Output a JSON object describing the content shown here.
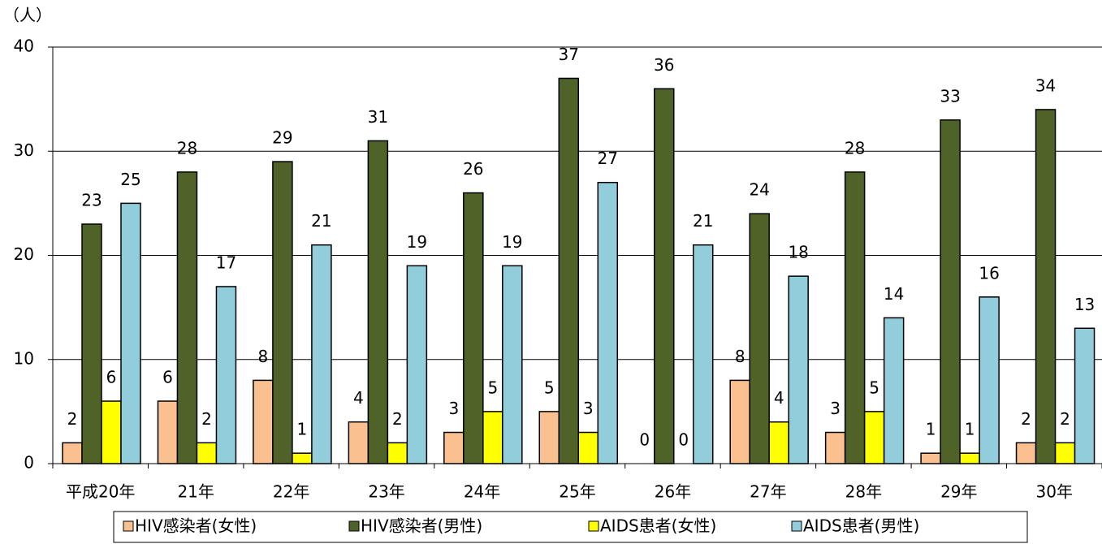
{
  "chart_data": {
    "type": "bar",
    "y_axis_label": "（人）",
    "categories": [
      "平成20年",
      "21年",
      "22年",
      "23年",
      "24年",
      "25年",
      "26年",
      "27年",
      "28年",
      "29年",
      "30年"
    ],
    "series": [
      {
        "name": "HIV感染者(女性)",
        "color": "#fac090",
        "values": [
          2,
          6,
          8,
          4,
          3,
          5,
          0,
          8,
          3,
          1,
          2
        ]
      },
      {
        "name": "HIV感染者(男性)",
        "color": "#4f6228",
        "values": [
          23,
          28,
          29,
          31,
          26,
          37,
          36,
          24,
          28,
          33,
          34
        ]
      },
      {
        "name": "AIDS患者(女性)",
        "color": "#ffff00",
        "values": [
          6,
          2,
          1,
          2,
          5,
          3,
          0,
          4,
          5,
          1,
          2
        ]
      },
      {
        "name": "AIDS患者(男性)",
        "color": "#92cddc",
        "values": [
          25,
          17,
          21,
          19,
          19,
          27,
          21,
          18,
          14,
          16,
          13
        ]
      }
    ],
    "ylim": [
      0,
      40
    ],
    "yticks": [
      0,
      10,
      20,
      30,
      40
    ],
    "grid": true,
    "legend": "bottom"
  }
}
